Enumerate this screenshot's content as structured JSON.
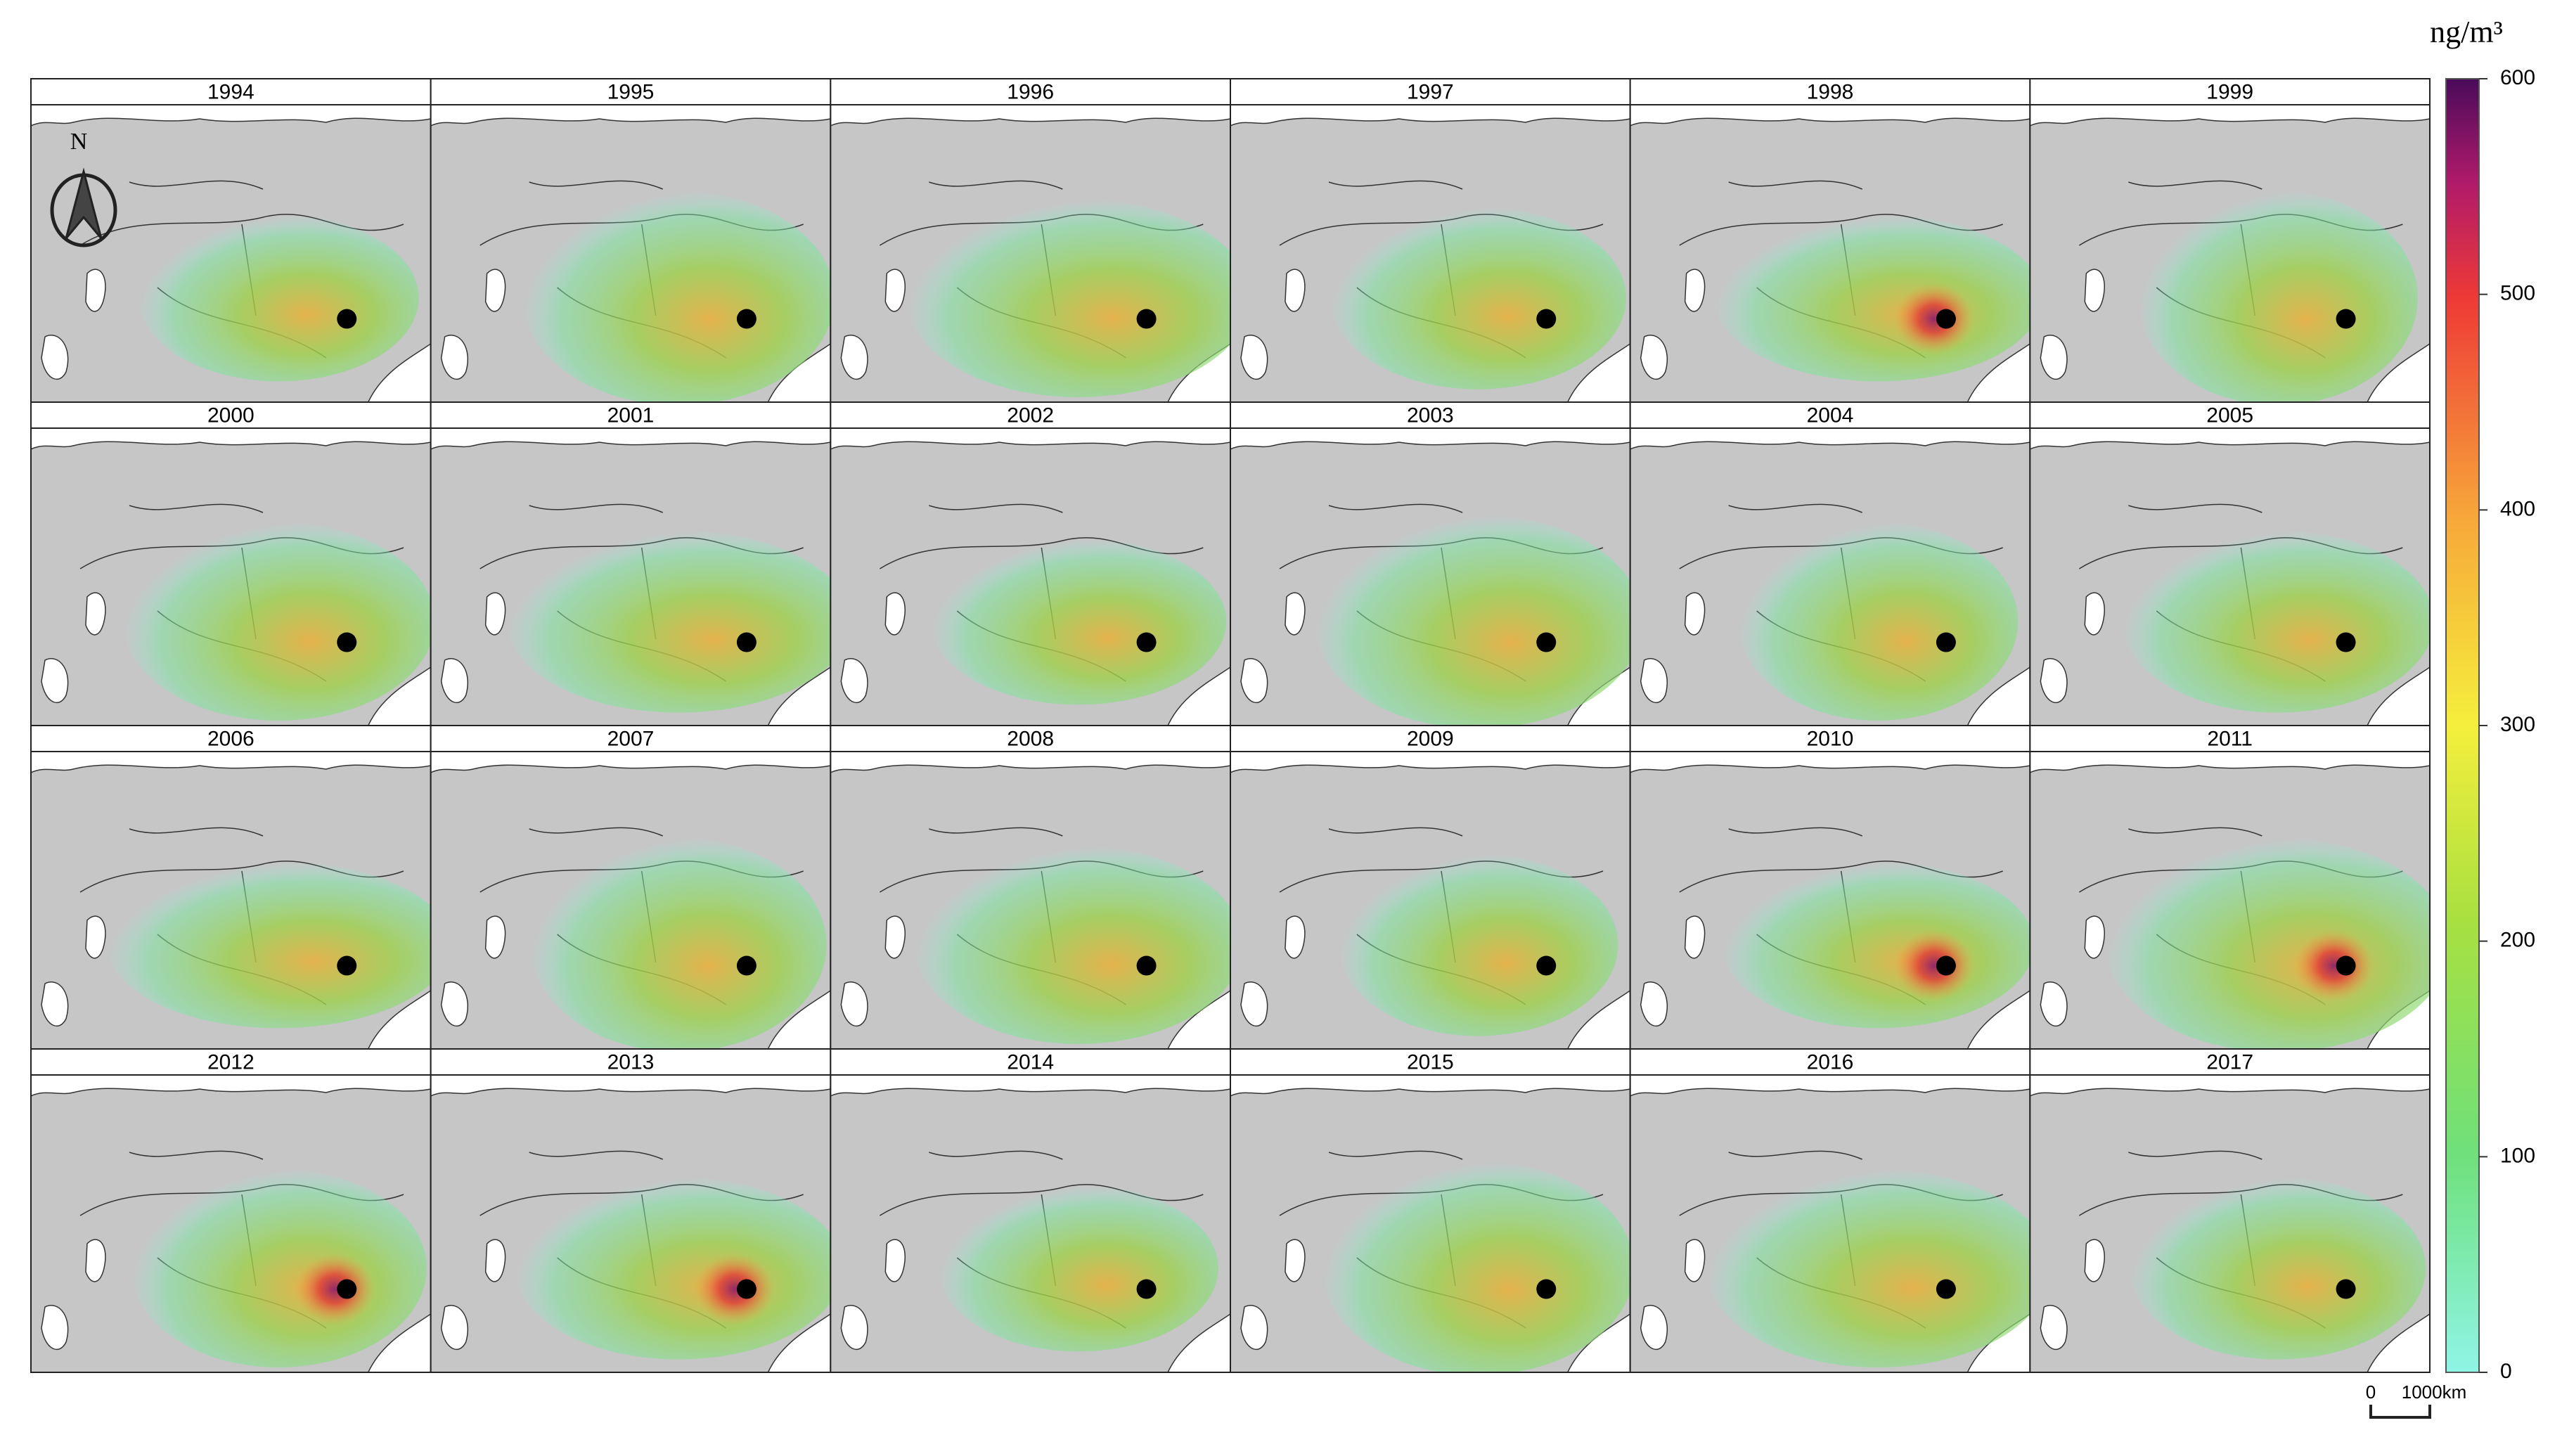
{
  "panels": [
    "1994",
    "1995",
    "1996",
    "1997",
    "1998",
    "1999",
    "2000",
    "2001",
    "2002",
    "2003",
    "2004",
    "2005",
    "2006",
    "2007",
    "2008",
    "2009",
    "2010",
    "2011",
    "2012",
    "2013",
    "2014",
    "2015",
    "2016",
    "2017"
  ],
  "colorbar": {
    "label": "ng/m³",
    "lim": [
      0,
      600
    ],
    "ticks": [
      0,
      100,
      200,
      300,
      400,
      500,
      600
    ]
  },
  "north": "N",
  "scale_bar": {
    "start": "0",
    "end": "1000km"
  }
}
